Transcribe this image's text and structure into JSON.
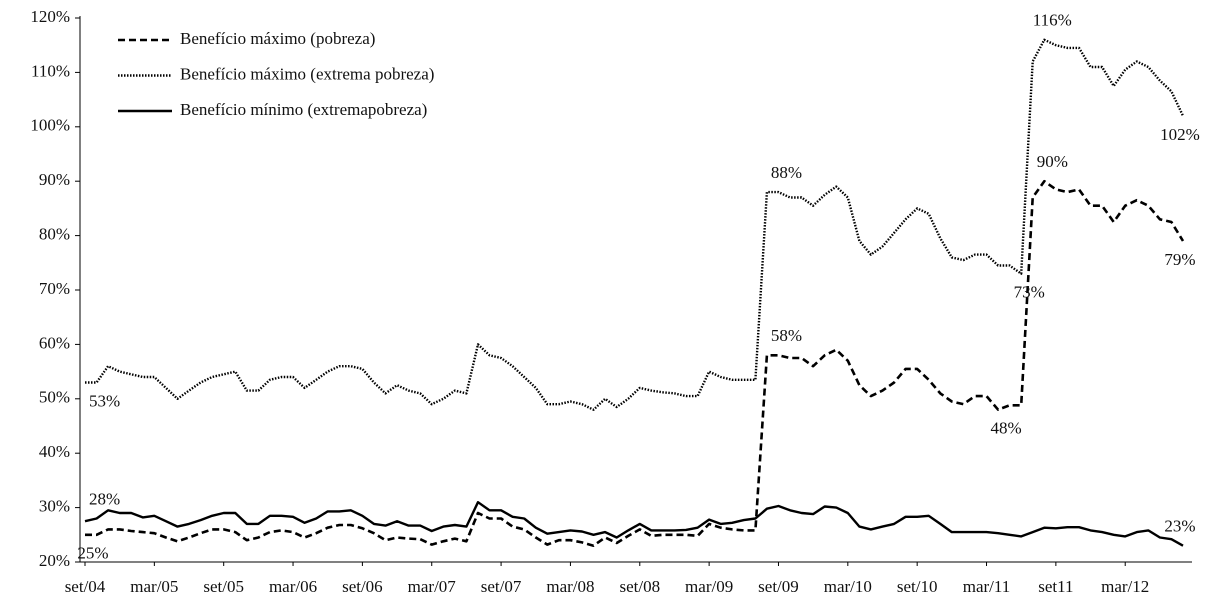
{
  "chart_data": {
    "type": "line",
    "categories": [
      "set/04",
      null,
      null,
      null,
      null,
      null,
      "mar/05",
      null,
      null,
      null,
      null,
      null,
      "set/05",
      null,
      null,
      null,
      null,
      null,
      "mar/06",
      null,
      null,
      null,
      null,
      null,
      "set/06",
      null,
      null,
      null,
      null,
      null,
      "mar/07",
      null,
      null,
      null,
      null,
      null,
      "set/07",
      null,
      null,
      null,
      null,
      null,
      "mar/08",
      null,
      null,
      null,
      null,
      null,
      "set/08",
      null,
      null,
      null,
      null,
      null,
      "mar/09",
      null,
      null,
      null,
      null,
      null,
      "set/09",
      null,
      null,
      null,
      null,
      null,
      "mar/10",
      null,
      null,
      null,
      null,
      null,
      "set/10",
      null,
      null,
      null,
      null,
      null,
      "mar/11",
      null,
      null,
      null,
      null,
      null,
      "set11",
      null,
      null,
      null,
      null,
      null,
      "mar/12",
      null,
      null,
      null,
      null,
      null
    ],
    "ylim": [
      20,
      120
    ],
    "yticks": [
      {
        "value": 20,
        "label": "20%"
      },
      {
        "value": 30,
        "label": "30%"
      },
      {
        "value": 40,
        "label": "40%"
      },
      {
        "value": 50,
        "label": "50%"
      },
      {
        "value": 60,
        "label": "60%"
      },
      {
        "value": 70,
        "label": "70%"
      },
      {
        "value": 80,
        "label": "80%"
      },
      {
        "value": 90,
        "label": "90%"
      },
      {
        "value": 100,
        "label": "100%"
      },
      {
        "value": 110,
        "label": "110%"
      },
      {
        "value": 120,
        "label": "120%"
      }
    ],
    "grid": false,
    "legend": "top-left",
    "series": [
      {
        "name": "Benefício máximo (pobreza)",
        "color": "#000000",
        "style": "dashed",
        "values": [
          25,
          25,
          26,
          26,
          25.7,
          25.5,
          25.3,
          24.5,
          23.8,
          24.5,
          25.3,
          26,
          26,
          25.5,
          24,
          24.5,
          25.5,
          25.8,
          25.5,
          24.5,
          25.3,
          26.3,
          26.8,
          26.8,
          26.2,
          25.3,
          24,
          24.5,
          24.3,
          24.2,
          23.2,
          23.8,
          24.3,
          23.8,
          29,
          28,
          28,
          26.5,
          26,
          24.5,
          23.2,
          24,
          24,
          23.6,
          23,
          24.5,
          23.5,
          24.8,
          26,
          24.8,
          25,
          25,
          25,
          24.8,
          27,
          26.3,
          26,
          25.8,
          25.8,
          58,
          58,
          57.5,
          57.5,
          56,
          58,
          59,
          57,
          52.5,
          50.5,
          51.5,
          53,
          55.5,
          55.5,
          53.5,
          51,
          49.5,
          49,
          50.5,
          50.5,
          48,
          48.8,
          48.8,
          87,
          90,
          88.5,
          88,
          88.5,
          85.5,
          85.5,
          82.5,
          85.5,
          86.5,
          85.5,
          83,
          82.5,
          79
        ],
        "value_labels": [
          "25%",
          null,
          null,
          null,
          null,
          null,
          null,
          null,
          null,
          null,
          null,
          null,
          null,
          null,
          null,
          null,
          null,
          null,
          null,
          null,
          null,
          null,
          null,
          null,
          null,
          null,
          null,
          null,
          null,
          null,
          null,
          null,
          null,
          null,
          null,
          null,
          null,
          null,
          null,
          null,
          null,
          null,
          null,
          null,
          null,
          null,
          null,
          null,
          null,
          null,
          null,
          null,
          null,
          null,
          null,
          null,
          null,
          null,
          null,
          null,
          "58%",
          null,
          null,
          null,
          null,
          null,
          null,
          null,
          null,
          null,
          null,
          null,
          null,
          null,
          null,
          null,
          null,
          null,
          null,
          "48%",
          null,
          null,
          null,
          "90%",
          null,
          null,
          null,
          null,
          null,
          null,
          null,
          null,
          null,
          null,
          null,
          "79%"
        ]
      },
      {
        "name": "Benefício máximo (extrema pobreza)",
        "color": "#000000",
        "style": "dotted",
        "values": [
          53,
          53,
          56,
          55,
          54.5,
          54,
          54,
          52,
          50,
          51.5,
          53,
          54,
          54.5,
          55,
          51.5,
          51.5,
          53.5,
          54,
          54,
          52,
          53.5,
          55,
          56,
          56,
          55.5,
          53,
          51,
          52.5,
          51.5,
          51,
          49,
          50,
          51.5,
          51,
          60,
          58,
          57.5,
          56,
          54,
          52,
          49,
          49,
          49.5,
          49,
          48,
          50,
          48.5,
          50,
          52,
          51.5,
          51.2,
          51,
          50.5,
          50.5,
          55,
          54,
          53.5,
          53.5,
          53.5,
          88,
          88,
          87,
          87,
          85.5,
          87.5,
          89,
          87,
          79,
          76.5,
          78,
          80.5,
          83,
          85,
          84,
          79.5,
          76,
          75.5,
          76.5,
          76.5,
          74.5,
          74.5,
          73,
          112,
          116,
          115,
          114.5,
          114.5,
          111,
          111,
          107.5,
          110.5,
          112,
          111,
          108.5,
          106.5,
          102
        ],
        "value_labels": [
          null,
          "53%",
          null,
          null,
          null,
          null,
          null,
          null,
          null,
          null,
          null,
          null,
          null,
          null,
          null,
          null,
          null,
          null,
          null,
          null,
          null,
          null,
          null,
          null,
          null,
          null,
          null,
          null,
          null,
          null,
          null,
          null,
          null,
          null,
          null,
          null,
          null,
          null,
          null,
          null,
          null,
          null,
          null,
          null,
          null,
          null,
          null,
          null,
          null,
          null,
          null,
          null,
          null,
          null,
          null,
          null,
          null,
          null,
          null,
          null,
          "88%",
          null,
          null,
          null,
          null,
          null,
          null,
          null,
          null,
          null,
          null,
          null,
          null,
          null,
          null,
          null,
          null,
          null,
          null,
          null,
          null,
          "73%",
          null,
          "116%",
          null,
          null,
          null,
          null,
          null,
          null,
          null,
          null,
          null,
          null,
          null,
          "102%"
        ]
      },
      {
        "name": "Benefício mínimo (extremapobreza)",
        "color": "#000000",
        "style": "solid",
        "values": [
          27.5,
          28,
          29.5,
          29,
          29,
          28.2,
          28.5,
          27.5,
          26.5,
          27,
          27.7,
          28.5,
          29,
          29,
          27,
          27,
          28.5,
          28.5,
          28.3,
          27.2,
          28,
          29.3,
          29.3,
          29.5,
          28.5,
          27,
          26.7,
          27.5,
          26.7,
          26.7,
          25.7,
          26.5,
          26.8,
          26.5,
          31,
          29.5,
          29.5,
          28.3,
          28,
          26.3,
          25.2,
          25.5,
          25.8,
          25.6,
          25,
          25.5,
          24.5,
          25.8,
          27,
          25.8,
          25.8,
          25.8,
          25.9,
          26.3,
          27.8,
          27,
          27.2,
          27.7,
          28,
          29.8,
          30.3,
          29.5,
          29,
          28.8,
          30.2,
          30,
          29,
          26.5,
          26,
          26.5,
          27,
          28.3,
          28.3,
          28.5,
          27,
          25.5,
          25.5,
          25.5,
          25.5,
          25.3,
          25,
          24.7,
          25.5,
          26.3,
          26.2,
          26.4,
          26.4,
          25.8,
          25.5,
          25,
          24.7,
          25.5,
          25.8,
          24.5,
          24.2,
          23
        ],
        "value_labels": [
          null,
          "28%",
          null,
          null,
          null,
          null,
          null,
          null,
          null,
          null,
          null,
          null,
          null,
          null,
          null,
          null,
          null,
          null,
          null,
          null,
          null,
          null,
          null,
          null,
          null,
          null,
          null,
          null,
          null,
          null,
          null,
          null,
          null,
          null,
          null,
          null,
          null,
          null,
          null,
          null,
          null,
          null,
          null,
          null,
          null,
          null,
          null,
          null,
          null,
          null,
          null,
          null,
          null,
          null,
          null,
          null,
          null,
          null,
          null,
          null,
          null,
          null,
          null,
          null,
          null,
          null,
          null,
          null,
          null,
          null,
          null,
          null,
          null,
          null,
          null,
          null,
          null,
          null,
          null,
          null,
          null,
          null,
          null,
          null,
          null,
          null,
          null,
          null,
          null,
          null,
          null,
          null,
          null,
          null,
          null,
          "23%"
        ]
      }
    ]
  }
}
